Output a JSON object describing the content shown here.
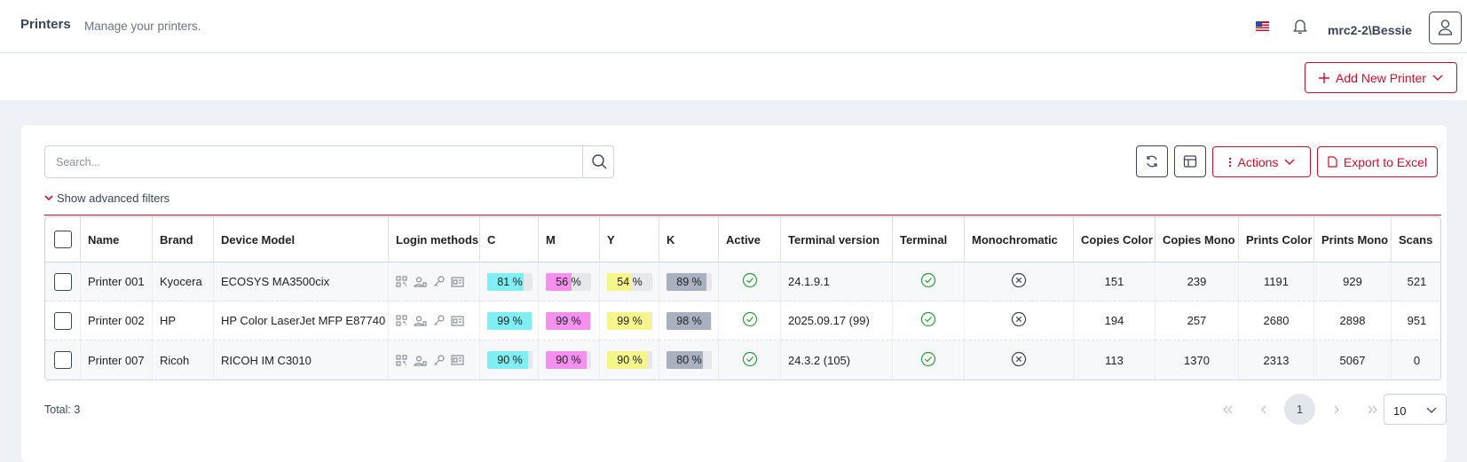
{
  "header": {
    "title": "Printers",
    "subtitle": "Manage your printers.",
    "user": "mrc2-2\\Bessie",
    "add_button": "Add New Printer"
  },
  "toolbar": {
    "search_placeholder": "Search...",
    "actions": "Actions",
    "export": "Export to Excel",
    "advanced_filters": "Show advanced filters"
  },
  "table": {
    "columns": [
      "Name",
      "Brand",
      "Device Model",
      "Login methods",
      "C",
      "M",
      "Y",
      "K",
      "Active",
      "Terminal version",
      "Terminal",
      "Monochromatic",
      "Copies Color",
      "Copies Mono",
      "Prints Color",
      "Prints Mono",
      "Scans"
    ],
    "toner_colors": [
      "#80eff4",
      "#f690ef",
      "#f6f58c",
      "#a9b0c0"
    ],
    "rows": [
      {
        "name": "Printer 001",
        "brand": "Kyocera",
        "model": "ECOSYS MA3500cix",
        "toner": [
          {
            "value": 81,
            "label": "81 %"
          },
          {
            "value": 56,
            "label": "56 %"
          },
          {
            "value": 54,
            "label": "54 %"
          },
          {
            "value": 89,
            "label": "89 %"
          }
        ],
        "active": true,
        "terminal_version": "24.1.9.1",
        "terminal": true,
        "monochromatic": false,
        "copies_color": 151,
        "copies_mono": 239,
        "prints_color": 1191,
        "prints_mono": 929,
        "scans": 521
      },
      {
        "name": "Printer 002",
        "brand": "HP",
        "model": "HP Color LaserJet MFP E87740",
        "toner": [
          {
            "value": 99,
            "label": "99 %"
          },
          {
            "value": 99,
            "label": "99 %"
          },
          {
            "value": 99,
            "label": "99 %"
          },
          {
            "value": 98,
            "label": "98 %"
          }
        ],
        "active": true,
        "terminal_version": "2025.09.17 (99)",
        "terminal": true,
        "monochromatic": false,
        "copies_color": 194,
        "copies_mono": 257,
        "prints_color": 2680,
        "prints_mono": 2898,
        "scans": 951
      },
      {
        "name": "Printer 007",
        "brand": "Ricoh",
        "model": "RICOH IM C3010",
        "toner": [
          {
            "value": 90,
            "label": "90 %"
          },
          {
            "value": 90,
            "label": "90 %"
          },
          {
            "value": 90,
            "label": "90 %"
          },
          {
            "value": 80,
            "label": "80 %"
          }
        ],
        "active": true,
        "terminal_version": "24.3.2 (105)",
        "terminal": true,
        "monochromatic": false,
        "copies_color": 113,
        "copies_mono": 1370,
        "prints_color": 2313,
        "prints_mono": 5067,
        "scans": 0
      }
    ]
  },
  "footer": {
    "total": "Total: 3",
    "page": "1",
    "page_size": "10"
  }
}
